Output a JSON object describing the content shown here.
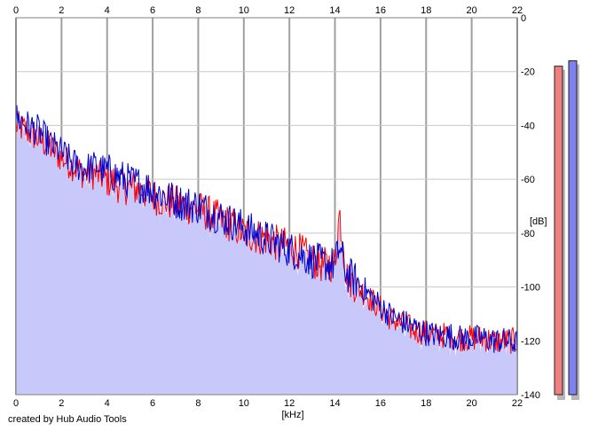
{
  "chart_data": {
    "type": "area",
    "title": "",
    "xlabel": "[kHz]",
    "ylabel": "[dB]",
    "xlim": [
      0,
      22
    ],
    "ylim": [
      -140,
      0
    ],
    "x_ticks": [
      "0",
      "2",
      "4",
      "6",
      "8",
      "10",
      "12",
      "14",
      "16",
      "18",
      "20",
      "22"
    ],
    "y_ticks": [
      "0",
      "-20",
      "-40",
      "-60",
      "-80",
      "-100",
      "-120",
      "-140"
    ],
    "grid": true,
    "legend": "none",
    "series": [
      {
        "color": "#ff0000",
        "x": [
          0,
          0.5,
          1,
          1.5,
          2,
          2.5,
          3,
          3.5,
          4,
          4.5,
          5,
          5.5,
          6,
          6.5,
          7,
          7.5,
          8,
          8.5,
          9,
          9.5,
          10,
          10.5,
          11,
          11.5,
          12,
          12.5,
          13,
          13.5,
          14,
          14.2,
          14.5,
          15,
          15.5,
          16,
          16.5,
          17,
          17.5,
          18,
          18.5,
          19,
          19.5,
          20,
          20.5,
          21,
          21.5,
          22
        ],
        "values": [
          -40,
          -42,
          -45,
          -48,
          -52,
          -55,
          -58,
          -58,
          -60,
          -62,
          -63,
          -64,
          -66,
          -68,
          -69,
          -70,
          -71,
          -73,
          -75,
          -77,
          -80,
          -81,
          -82,
          -84,
          -85,
          -87,
          -90,
          -92,
          -91,
          -72,
          -96,
          -100,
          -104,
          -108,
          -112,
          -114,
          -116,
          -117,
          -118,
          -118,
          -119,
          -119,
          -119,
          -120,
          -120,
          -120
        ]
      },
      {
        "color": "#0000d0",
        "x": [
          0,
          0.5,
          1,
          1.5,
          2,
          2.5,
          3,
          3.5,
          4,
          4.5,
          5,
          5.5,
          6,
          6.5,
          7,
          7.5,
          8,
          8.5,
          9,
          9.5,
          10,
          10.5,
          11,
          11.5,
          12,
          12.5,
          13,
          13.5,
          14,
          14.2,
          14.5,
          15,
          15.5,
          16,
          16.5,
          17,
          17.5,
          18,
          18.5,
          19,
          19.5,
          20,
          20.5,
          21,
          21.5,
          22
        ],
        "values": [
          -37,
          -40,
          -42,
          -47,
          -50,
          -54,
          -56,
          -55,
          -57,
          -59,
          -61,
          -62,
          -64,
          -66,
          -68,
          -69,
          -70,
          -72,
          -74,
          -76,
          -78,
          -80,
          -82,
          -84,
          -86,
          -88,
          -90,
          -91,
          -92,
          -85,
          -95,
          -98,
          -103,
          -107,
          -111,
          -113,
          -115,
          -117,
          -118,
          -118,
          -119,
          -119,
          -119,
          -120,
          -120,
          -121
        ]
      }
    ],
    "level_meters": [
      {
        "color": "#f08080",
        "value": -18
      },
      {
        "color": "#8080f0",
        "value": -16
      }
    ]
  },
  "credit": "created by Hub Audio Tools"
}
